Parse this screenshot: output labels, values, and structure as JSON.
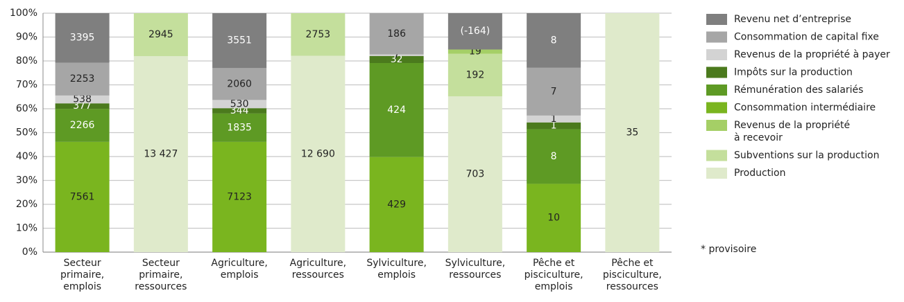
{
  "chart_data": {
    "type": "percent_stacked_bar",
    "categories": [
      "Secteur\nprimaire,\nemplois",
      "Secteur\nprimaire,\nressources",
      "Agriculture,\nemplois",
      "Agriculture,\nressources",
      "Sylviculture,\nemplois",
      "Sylviculture,\nressources",
      "Pêche et\npisciculture,\nemplois",
      "Pêche et\npisciculture,\nressources"
    ],
    "series": [
      {
        "name": "Revenu net d’entreprise",
        "color": "#7f7f7f",
        "values": [
          3395,
          null,
          3551,
          null,
          null,
          -164,
          8,
          null
        ],
        "value_labels": [
          "3395",
          null,
          "3551",
          null,
          null,
          "(-164)",
          "8",
          null
        ]
      },
      {
        "name": "Consommation de capital fixe",
        "color": "#a6a6a6",
        "values": [
          2253,
          null,
          2060,
          null,
          186,
          null,
          7,
          null
        ]
      },
      {
        "name": "Revenus de la propriété à payer",
        "color": "#d3d3d3",
        "values": [
          538,
          null,
          530,
          null,
          7,
          null,
          1,
          null
        ]
      },
      {
        "name": "Impôts sur la production",
        "color": "#4b7a1d",
        "values": [
          377,
          null,
          344,
          null,
          32,
          null,
          1,
          null
        ]
      },
      {
        "name": "Rémunération des salariés",
        "color": "#5e9a24",
        "values": [
          2266,
          null,
          1835,
          null,
          424,
          null,
          8,
          null
        ]
      },
      {
        "name": "Consommation intermédiaire",
        "color": "#7ab51f",
        "values": [
          7561,
          null,
          7123,
          null,
          429,
          null,
          10,
          null
        ]
      },
      {
        "name": "Revenus de la propriété\nà recevoir",
        "color": "#a5cf66",
        "values": [
          null,
          null,
          null,
          null,
          null,
          19,
          null,
          null
        ]
      },
      {
        "name": "Subventions sur la production",
        "color": "#c4df9c",
        "values": [
          null,
          2945,
          null,
          2753,
          null,
          192,
          null,
          null
        ]
      },
      {
        "name": "Production",
        "color": "#dfeacb",
        "values": [
          null,
          13427,
          null,
          12690,
          null,
          703,
          null,
          35
        ],
        "value_labels": [
          null,
          "13 427",
          null,
          "12 690",
          null,
          "703",
          null,
          "35"
        ]
      }
    ],
    "ylim": [
      0,
      100
    ],
    "yticks": [
      {
        "value": 0,
        "label": "0%"
      },
      {
        "value": 10,
        "label": "10%"
      },
      {
        "value": 20,
        "label": "20%"
      },
      {
        "value": 30,
        "label": "30%"
      },
      {
        "value": 40,
        "label": "40%"
      },
      {
        "value": 50,
        "label": "50%"
      },
      {
        "value": 60,
        "label": "60%"
      },
      {
        "value": 70,
        "label": "70%"
      },
      {
        "value": 80,
        "label": "80%"
      },
      {
        "value": 90,
        "label": "90%"
      },
      {
        "value": 100,
        "label": "100%"
      }
    ],
    "grid": true,
    "legend_position": "right",
    "footnote": "* provisoire"
  }
}
